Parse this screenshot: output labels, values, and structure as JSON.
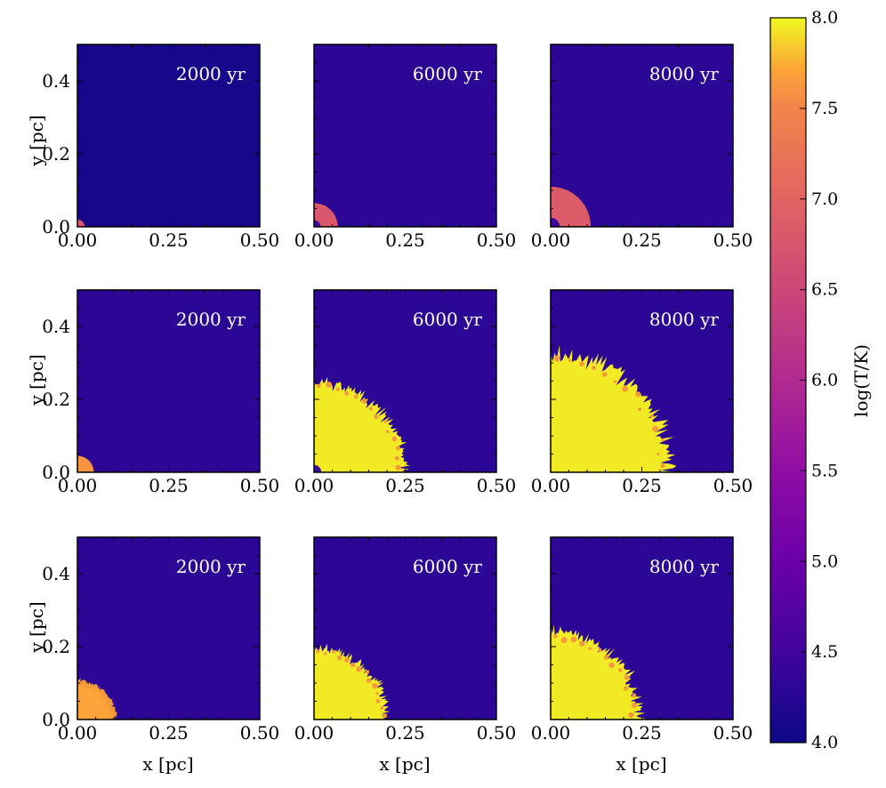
{
  "chart_data": {
    "type": "heatmap",
    "grid": {
      "rows": 3,
      "cols": 3
    },
    "xlabel": "x [pc]",
    "ylabel": "y [pc]",
    "xlim": [
      0.0,
      0.5
    ],
    "ylim": [
      0.0,
      0.5
    ],
    "xticks": [
      "0.00",
      "0.25",
      "0.50"
    ],
    "xtick_values": [
      0.0,
      0.25,
      0.5
    ],
    "yticks": [
      "0.0",
      "0.2",
      "0.4"
    ],
    "ytick_values": [
      0.0,
      0.2,
      0.4
    ],
    "colorbar": {
      "label": "log(T/K)",
      "min": 4.0,
      "max": 8.0,
      "ticks": [
        "4.0",
        "4.5",
        "5.0",
        "5.5",
        "6.0",
        "6.5",
        "7.0",
        "7.5",
        "8.0"
      ],
      "tick_values": [
        4.0,
        4.5,
        5.0,
        5.5,
        6.0,
        6.5,
        7.0,
        7.5,
        8.0
      ],
      "colormap": "plasma"
    },
    "colors": {
      "background_cold": "#0d0887",
      "background_warm": "#3a049a",
      "hot": "#f0f921",
      "mid": "#ef7c57"
    },
    "panels": [
      {
        "row": 0,
        "col": 0,
        "time": "2000 yr",
        "shell_radius_pc": 0.02,
        "shell_logT": 6.8,
        "inner_radius_pc": 0.0,
        "background_logT": 4.1,
        "rough": false
      },
      {
        "row": 0,
        "col": 1,
        "time": "6000 yr",
        "shell_radius_pc": 0.065,
        "shell_logT": 6.8,
        "inner_radius_pc": 0.018,
        "background_logT": 4.3,
        "rough": false
      },
      {
        "row": 0,
        "col": 2,
        "time": "8000 yr",
        "shell_radius_pc": 0.11,
        "shell_logT": 6.85,
        "inner_radius_pc": 0.025,
        "background_logT": 4.3,
        "rough": false
      },
      {
        "row": 1,
        "col": 0,
        "time": "2000 yr",
        "shell_radius_pc": 0.045,
        "shell_logT": 7.6,
        "inner_radius_pc": 0.0,
        "background_logT": 4.3,
        "rough": false
      },
      {
        "row": 1,
        "col": 1,
        "time": "6000 yr",
        "shell_radius_pc": 0.25,
        "shell_logT": 7.95,
        "inner_radius_pc": 0.02,
        "background_logT": 4.3,
        "rough": true
      },
      {
        "row": 1,
        "col": 2,
        "time": "8000 yr",
        "shell_radius_pc": 0.33,
        "shell_logT": 7.95,
        "inner_radius_pc": 0.0,
        "background_logT": 4.3,
        "rough": true
      },
      {
        "row": 2,
        "col": 0,
        "time": "2000 yr",
        "shell_radius_pc": 0.105,
        "shell_logT": 7.7,
        "inner_radius_pc": 0.0,
        "background_logT": 4.3,
        "rough": true
      },
      {
        "row": 2,
        "col": 1,
        "time": "6000 yr",
        "shell_radius_pc": 0.2,
        "shell_logT": 7.95,
        "inner_radius_pc": 0.0,
        "background_logT": 4.3,
        "rough": true
      },
      {
        "row": 2,
        "col": 2,
        "time": "8000 yr",
        "shell_radius_pc": 0.245,
        "shell_logT": 7.95,
        "inner_radius_pc": 0.0,
        "background_logT": 4.3,
        "rough": true
      }
    ]
  }
}
